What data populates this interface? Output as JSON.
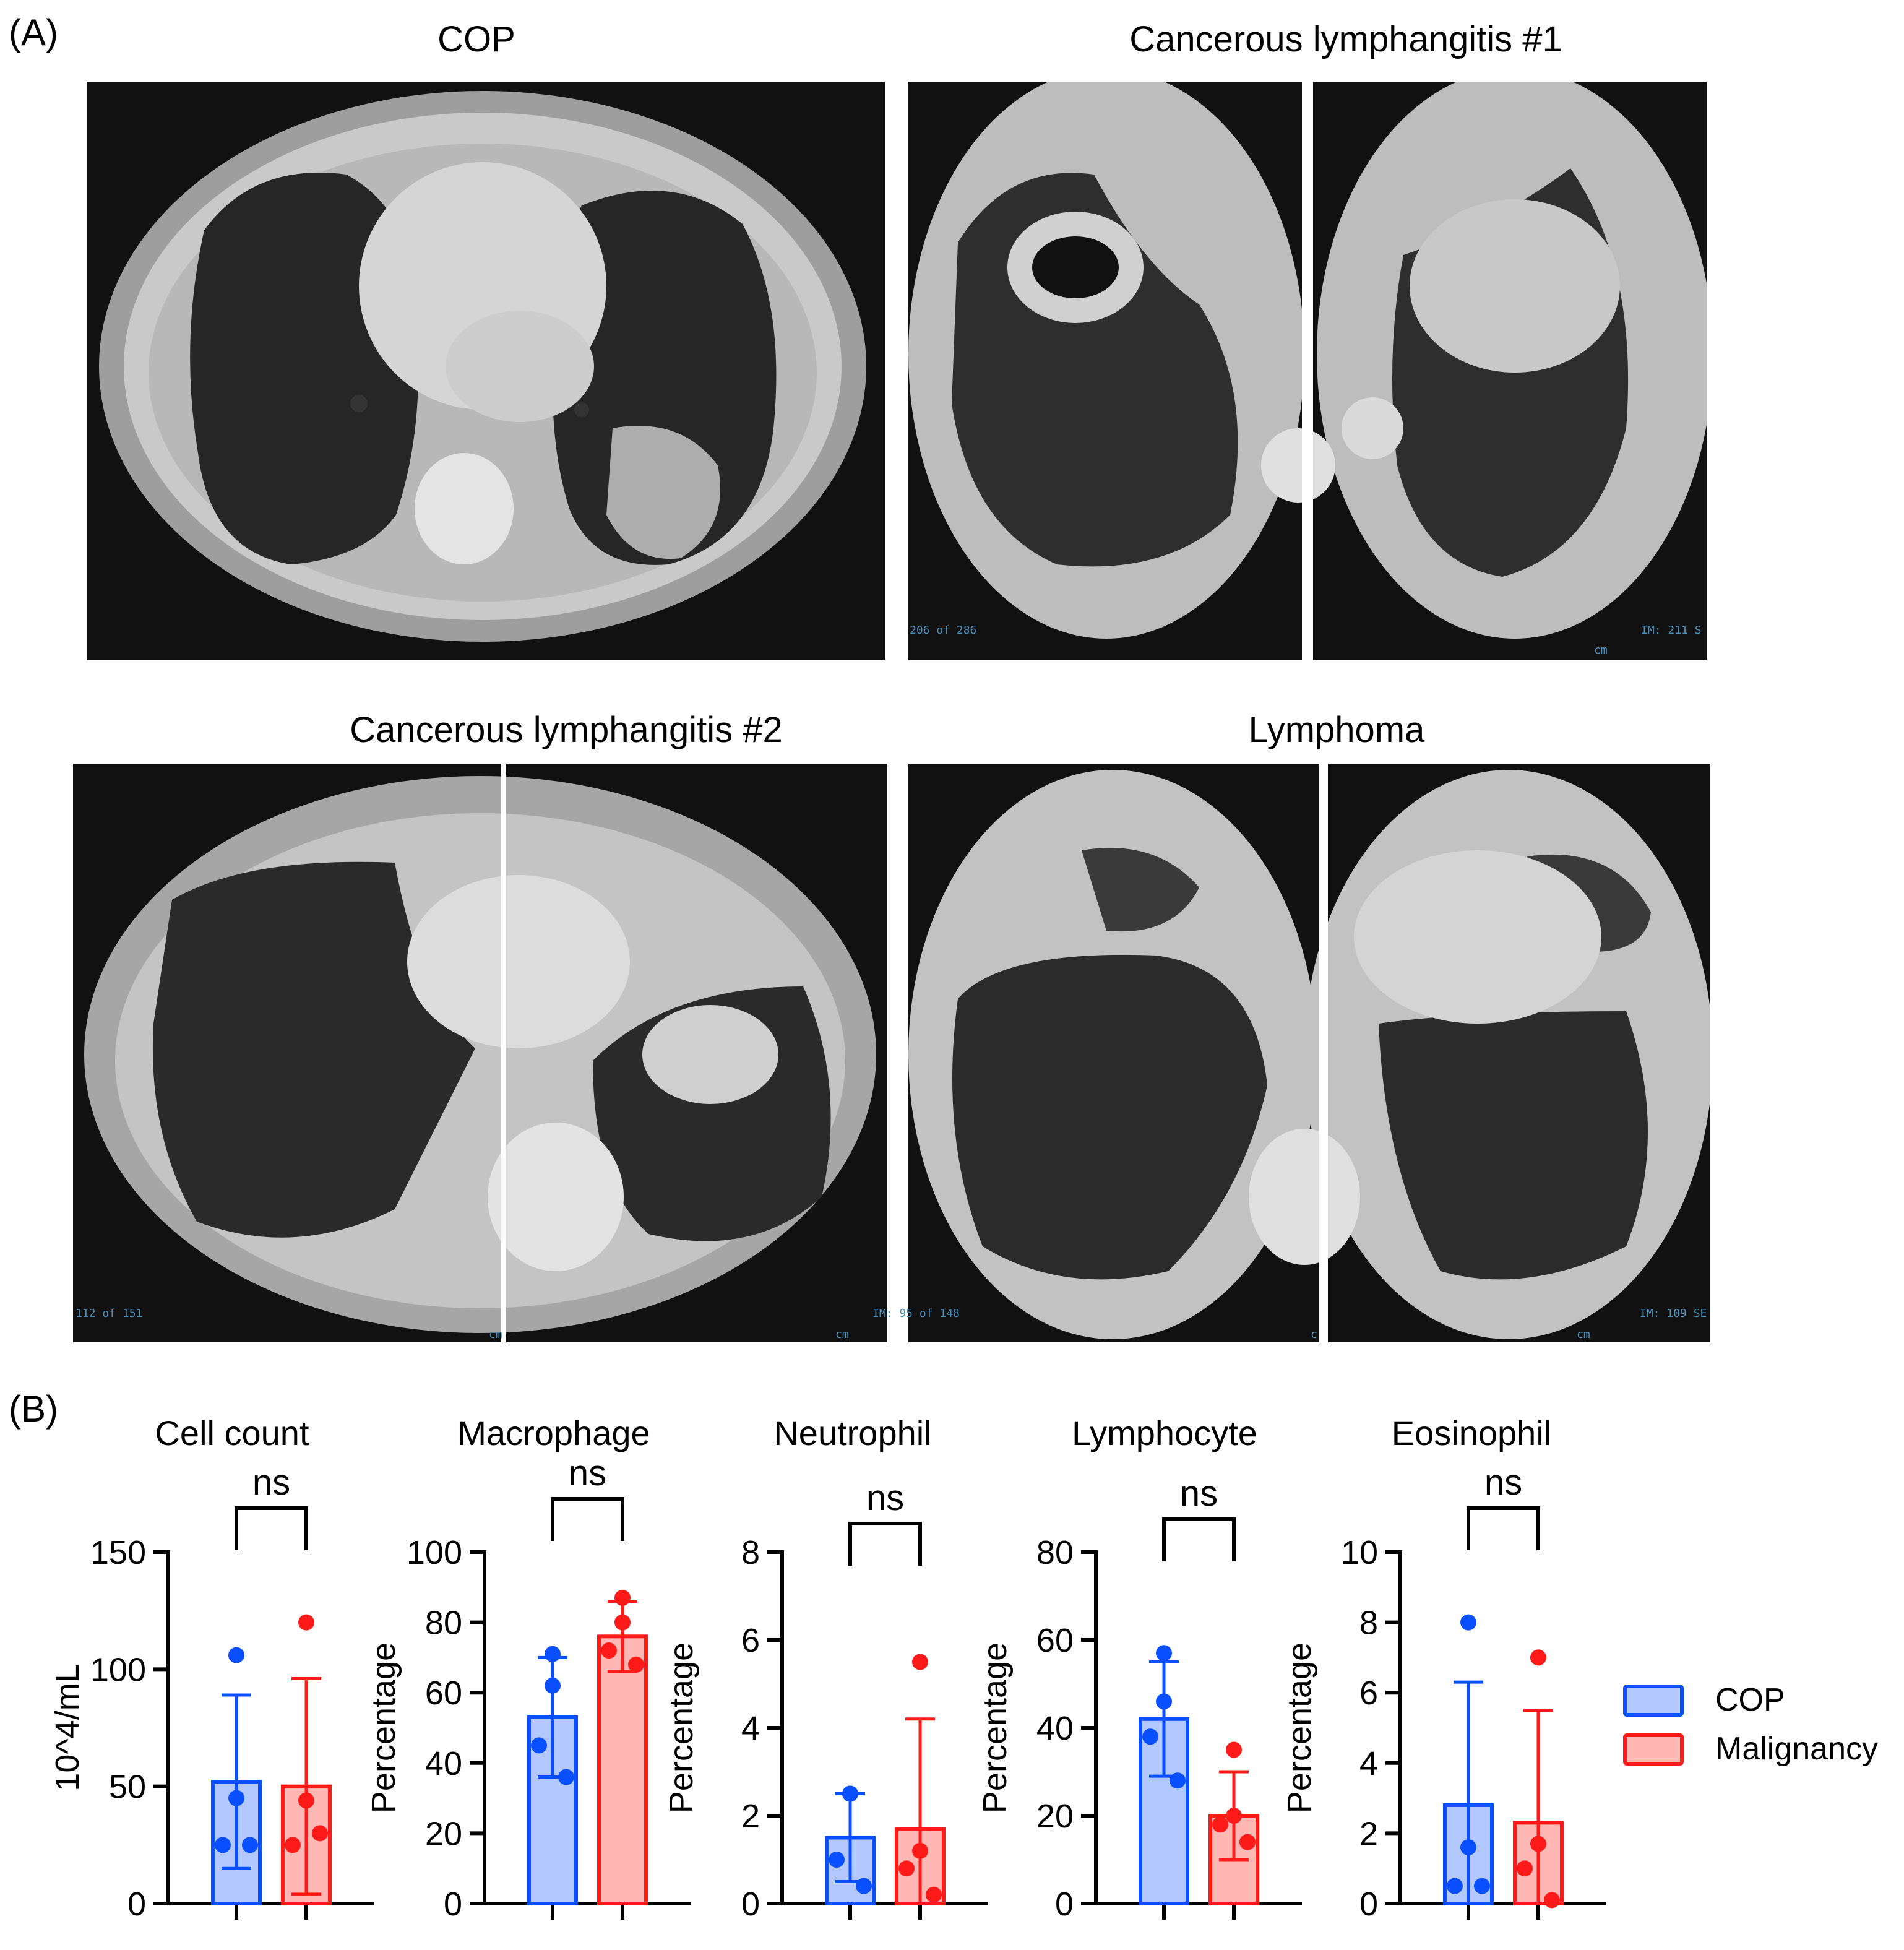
{
  "panel_a": {
    "letter": "(A)",
    "images": [
      {
        "id": "cop",
        "title": "COP",
        "captions": []
      },
      {
        "id": "cl1",
        "title": "Cancerous lymphangitis #1",
        "captions": [
          "206 of 286",
          "cm",
          "IM: 211 S"
        ]
      },
      {
        "id": "cl2",
        "title": "Cancerous lymphangitis #2",
        "captions": [
          "112 of 151",
          "cm",
          "cm"
        ]
      },
      {
        "id": "lym",
        "title": "Lymphoma",
        "captions": [
          "IM: 95 of 148",
          "c",
          "cm",
          "IM: 109 SE"
        ]
      }
    ]
  },
  "panel_b": {
    "letter": "(B)"
  },
  "legend": {
    "items": [
      {
        "label": "COP",
        "fill": "#b3c8ff",
        "stroke": "#0a4fff"
      },
      {
        "label": "Malignancy",
        "fill": "#ffb8b3",
        "stroke": "#ff1a1a"
      }
    ]
  },
  "colors": {
    "cop": "#0a4fff",
    "cop_fill": "#b3c8ff",
    "malignancy": "#ff1a1a",
    "malignancy_fill": "#ffb8b3"
  },
  "chart_data": [
    {
      "type": "bar",
      "title": "Cell count",
      "ylabel": "10^4/mL",
      "ylim": [
        0,
        150
      ],
      "yticks": [
        0,
        50,
        100,
        150
      ],
      "categories": [
        "COP",
        "Malignancy"
      ],
      "values": [
        52,
        50
      ],
      "sd": [
        37,
        46
      ],
      "points": [
        [
          106,
          45,
          25,
          25
        ],
        [
          120,
          44,
          25,
          30
        ]
      ],
      "significance": "ns"
    },
    {
      "type": "bar",
      "title": "Macrophage",
      "ylabel": "Percentage",
      "ylim": [
        0,
        100
      ],
      "yticks": [
        0,
        20,
        40,
        60,
        80,
        100
      ],
      "categories": [
        "COP",
        "Malignancy"
      ],
      "values": [
        53,
        76
      ],
      "sd": [
        17,
        10
      ],
      "points": [
        [
          71,
          62,
          45,
          36
        ],
        [
          87,
          80,
          72,
          68
        ]
      ],
      "significance": "ns"
    },
    {
      "type": "bar",
      "title": "Neutrophil",
      "ylabel": "Percentage",
      "ylim": [
        0,
        8
      ],
      "yticks": [
        0,
        2,
        4,
        6,
        8
      ],
      "categories": [
        "COP",
        "Malignancy"
      ],
      "values": [
        1.5,
        1.7
      ],
      "sd": [
        1.0,
        2.5
      ],
      "points": [
        [
          2.5,
          2.5,
          1.0,
          0.4
        ],
        [
          5.5,
          1.2,
          0.8,
          0.2
        ]
      ],
      "significance": "ns"
    },
    {
      "type": "bar",
      "title": "Lymphocyte",
      "ylabel": "Percentage",
      "ylim": [
        0,
        80
      ],
      "yticks": [
        0,
        20,
        40,
        60,
        80
      ],
      "categories": [
        "COP",
        "Malignancy"
      ],
      "values": [
        42,
        20
      ],
      "sd": [
        13,
        10
      ],
      "points": [
        [
          57,
          46,
          38,
          28
        ],
        [
          35,
          20,
          18,
          14
        ]
      ],
      "significance": "ns"
    },
    {
      "type": "bar",
      "title": "Eosinophil",
      "ylabel": "Percentage",
      "ylim": [
        0,
        10
      ],
      "yticks": [
        0,
        2,
        4,
        6,
        8,
        10
      ],
      "categories": [
        "COP",
        "Malignancy"
      ],
      "values": [
        2.8,
        2.3
      ],
      "sd": [
        3.5,
        3.2
      ],
      "points": [
        [
          8,
          1.6,
          0.5,
          0.5
        ],
        [
          7,
          1.7,
          1.0,
          0.1
        ]
      ],
      "significance": "ns"
    }
  ]
}
